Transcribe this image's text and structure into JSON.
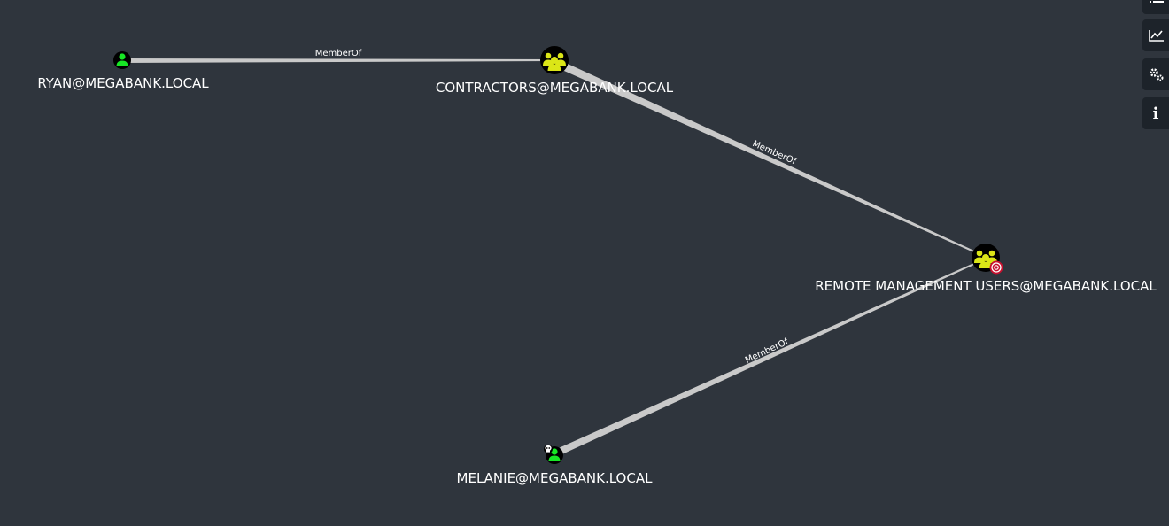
{
  "graph": {
    "nodes": [
      {
        "id": "ryan",
        "label": "RYAN@MEGABANK.LOCAL",
        "type": "user"
      },
      {
        "id": "contractors",
        "label": "CONTRACTORS@MEGABANK.LOCAL",
        "type": "group"
      },
      {
        "id": "rmu",
        "label": "REMOTE MANAGEMENT USERS@MEGABANK.LOCAL",
        "type": "group",
        "badge": "target-icon"
      },
      {
        "id": "melanie",
        "label": "MELANIE@MEGABANK.LOCAL",
        "type": "user",
        "badge": "skull-icon"
      }
    ],
    "edges": [
      {
        "from": "ryan",
        "to": "contractors",
        "label": "MemberOf"
      },
      {
        "from": "contractors",
        "to": "rmu",
        "label": "MemberOf"
      },
      {
        "from": "melanie",
        "to": "rmu",
        "label": "MemberOf"
      }
    ]
  },
  "toolbar": [
    {
      "icon": "list-icon"
    },
    {
      "icon": "line-chart-icon"
    },
    {
      "icon": "gears-icon"
    },
    {
      "icon": "info-icon",
      "text": "i"
    }
  ],
  "colors": {
    "background": "#2f353d",
    "user_fill": "#17e625",
    "group_fill": "#dbe617",
    "node_ring": "#000000",
    "edge": "#b8b8b8",
    "target_badge": "#c8102e",
    "toolbar_bg": "#1d232a"
  }
}
